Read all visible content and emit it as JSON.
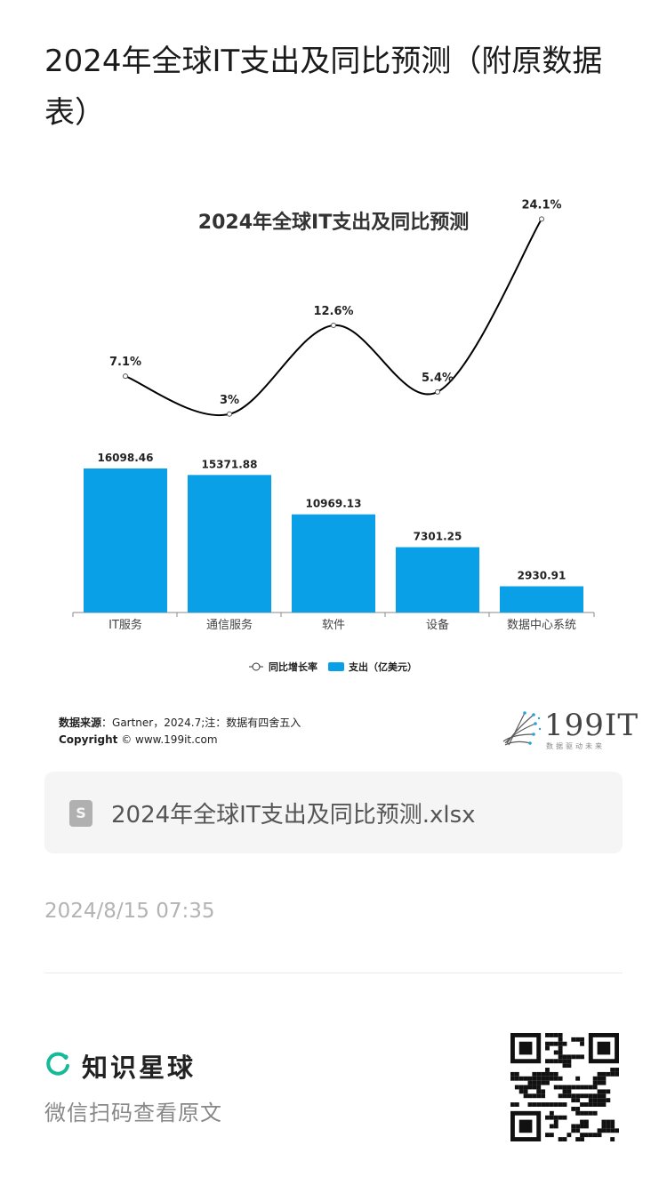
{
  "article": {
    "title": "2024年全球IT支出及同比预测（附原数据表）"
  },
  "chart_data": {
    "type": "bar",
    "title": "2024年全球IT支出及同比预测",
    "categories": [
      "IT服务",
      "通信服务",
      "软件",
      "设备",
      "数据中心系统"
    ],
    "series": [
      {
        "name": "支出（亿美元）",
        "type": "bar",
        "values": [
          16098.46,
          15371.88,
          10969.13,
          7301.25,
          2930.91
        ],
        "value_labels": [
          "16098.46",
          "15371.88",
          "10969.13",
          "7301.25",
          "2930.91"
        ],
        "color": "#0aa0e8"
      },
      {
        "name": "同比增长率",
        "type": "line",
        "values": [
          7.1,
          3,
          12.6,
          5.4,
          24.1
        ],
        "value_labels": [
          "7.1%",
          "3%",
          "12.6%",
          "5.4%",
          "24.1%"
        ],
        "color": "#000000"
      }
    ],
    "legend": {
      "position": "bottom",
      "line_label": "同比增长率",
      "bar_label": "支出（亿美元）"
    }
  },
  "source": {
    "label": "数据来源",
    "text": "：Gartner，2024.7;注：数据有四舍五入",
    "copyright_label": "Copyright",
    "copyright_text": "© www.199it.com"
  },
  "logo": {
    "text": "199IT",
    "sub": "数据驱动未来"
  },
  "attachment": {
    "filename": "2024年全球IT支出及同比预测.xlsx",
    "icon": "spreadsheet-file-icon"
  },
  "timestamp": "2024/8/15 07:35",
  "footer": {
    "brand": "知识星球",
    "scan_hint": "微信扫码查看原文",
    "brand_color": "#16b998"
  }
}
